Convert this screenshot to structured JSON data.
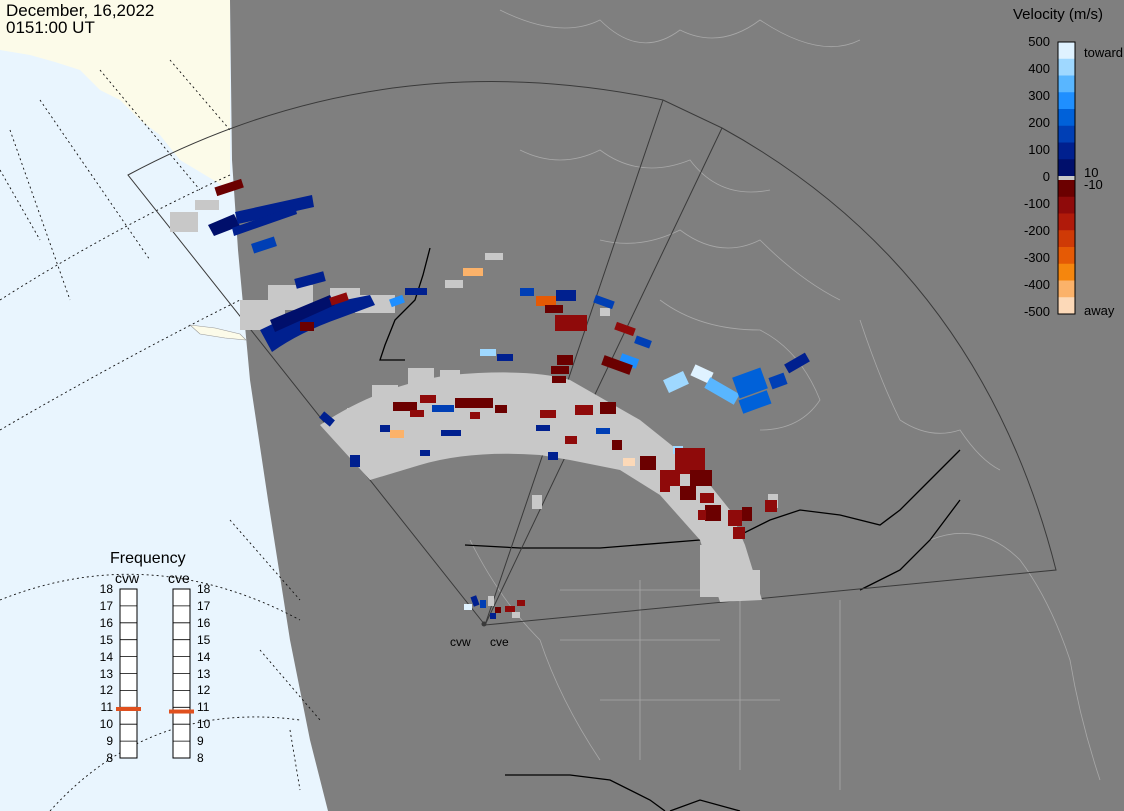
{
  "header": {
    "date": "December, 16,2022",
    "time": "0151:00 UT"
  },
  "velocity_legend": {
    "title": "Velocity (m/s)",
    "ticks": [
      "500",
      "400",
      "300",
      "200",
      "100",
      "10",
      "0",
      "-10",
      "-100",
      "-200",
      "-300",
      "-400",
      "-500"
    ],
    "toward_label": "toward",
    "away_label": "away",
    "toward_colors": [
      "#dff2ff",
      "#9fd8ff",
      "#59b6ff",
      "#1f8fff",
      "#0061d9",
      "#003fb5",
      "#00208f",
      "#000f6b"
    ],
    "away_colors": [
      "#6b0000",
      "#8f0a0a",
      "#b01a0a",
      "#cf3a06",
      "#e55a05",
      "#f5860d",
      "#fbb26a",
      "#fcd9b8"
    ]
  },
  "frequency": {
    "title": "Frequency",
    "radars": [
      {
        "name": "cvw",
        "value_mhz": 10.9
      },
      {
        "name": "cve",
        "value_mhz": 10.75
      }
    ],
    "scale": [
      "18",
      "17",
      "16",
      "15",
      "14",
      "13",
      "12",
      "11",
      "10",
      "9",
      "8"
    ],
    "marker_color": "#e0501e"
  },
  "radar_sites": [
    {
      "name": "cvw"
    },
    {
      "name": "cve"
    }
  ],
  "colors": {
    "land": "#7f7f7f",
    "ocean_sunlit": "#e9f5fe",
    "land_sunlit": "#fcfbe9",
    "ground_scatter": "#c8c8c8"
  }
}
